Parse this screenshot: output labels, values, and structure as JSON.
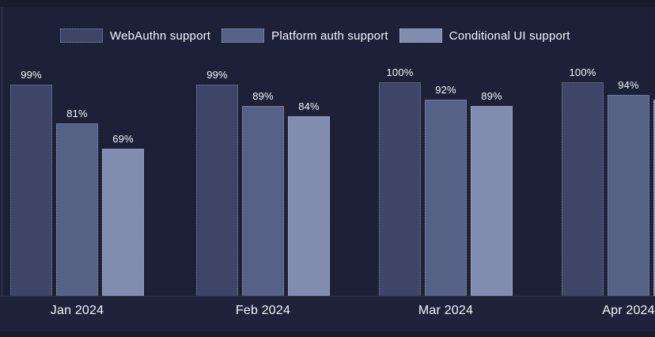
{
  "colors": {
    "background": "#1c2137",
    "edge_strip": "#181d2d",
    "axis_band": "#1e2339",
    "text": "#f4f6fb"
  },
  "chart_data": {
    "type": "bar",
    "title": "",
    "categories": [
      "Jan 2024",
      "Feb 2024",
      "Mar 2024",
      "Apr 2024"
    ],
    "series": [
      {
        "name": "WebAuthn support",
        "color": "#3f4566",
        "values": [
          99,
          99,
          100,
          100
        ],
        "labels": [
          "99%",
          "99%",
          "100%",
          "100%"
        ]
      },
      {
        "name": "Platform auth support",
        "color": "#566186",
        "values": [
          81,
          89,
          92,
          94
        ],
        "labels": [
          "81%",
          "89%",
          "92%",
          "94%"
        ]
      },
      {
        "name": "Conditional UI support",
        "color": "#828cae",
        "values": [
          69,
          84,
          89,
          92
        ],
        "labels": [
          "69%",
          "84%",
          "89%",
          ""
        ]
      }
    ],
    "ylim": [
      0,
      100
    ],
    "legend_position": "top",
    "grid": false,
    "value_label_suffix": "%"
  }
}
